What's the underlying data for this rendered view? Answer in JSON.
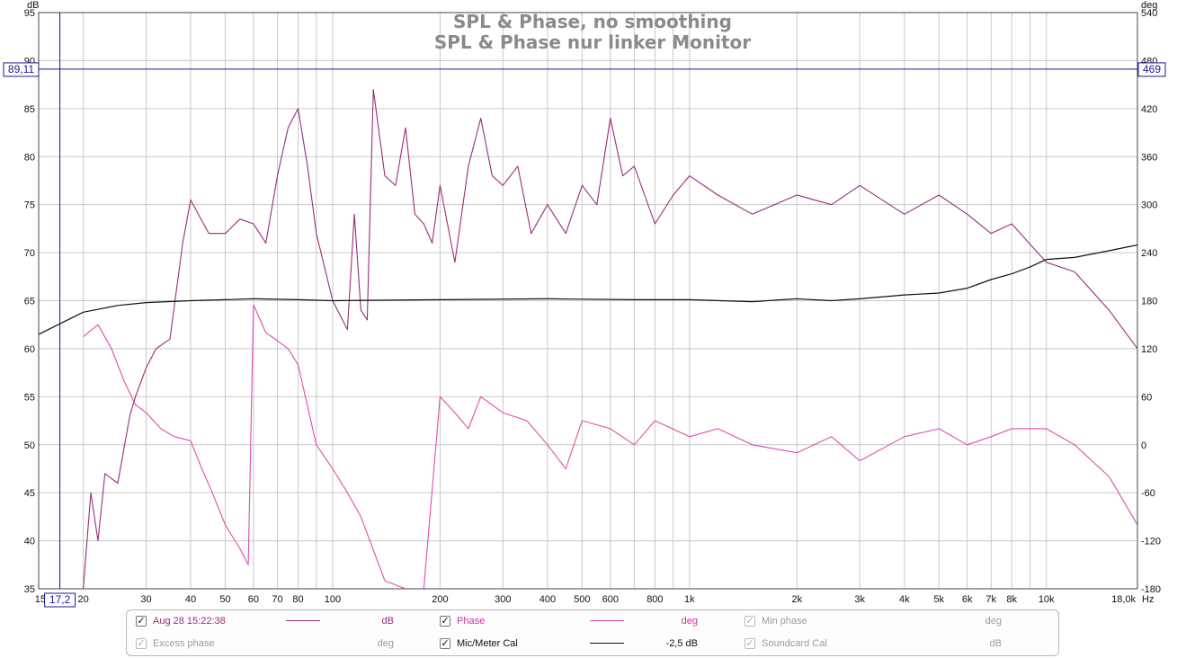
{
  "chart_data": {
    "type": "line",
    "title": "SPL & Phase, no smoothing",
    "subtitle": "SPL & Phase nur linker Monitor",
    "left_axis": {
      "unit": "dB",
      "range": [
        35,
        95
      ],
      "ticks": [
        "95",
        "90",
        "85",
        "80",
        "75",
        "70",
        "65",
        "60",
        "55",
        "50",
        "45",
        "40",
        "35"
      ]
    },
    "right_axis": {
      "unit": "deg",
      "range": [
        -180,
        540
      ],
      "ticks": [
        "540",
        "480",
        "420",
        "360",
        "300",
        "240",
        "180",
        "120",
        "60",
        "0",
        "-60",
        "-120",
        "-180"
      ]
    },
    "x_axis": {
      "unit": "Hz",
      "scale": "log",
      "range": [
        15,
        18000
      ],
      "tick_labels": [
        "15",
        "20",
        "30",
        "40",
        "50",
        "60",
        "70",
        "80",
        "100",
        "200",
        "300",
        "400",
        "500",
        "600",
        "800",
        "1k",
        "2k",
        "3k",
        "4k",
        "5k",
        "6k",
        "7k",
        "8k",
        "10k",
        "18,0k"
      ]
    },
    "grid": true,
    "cursor": {
      "db": "89,11",
      "deg": "469",
      "freq": "17,2"
    },
    "series": [
      {
        "name": "Aug 28 15:22:38",
        "unit": "dB",
        "color": "#9b2b7d",
        "x": [
          20,
          21,
          22,
          23,
          25,
          27,
          28,
          30,
          32,
          35,
          38,
          40,
          42,
          45,
          50,
          55,
          60,
          65,
          70,
          75,
          80,
          85,
          90,
          100,
          110,
          115,
          120,
          125,
          130,
          140,
          150,
          160,
          170,
          180,
          190,
          200,
          220,
          240,
          260,
          280,
          300,
          330,
          360,
          400,
          450,
          500,
          550,
          600,
          650,
          700,
          800,
          900,
          1000,
          1200,
          1500,
          2000,
          2500,
          3000,
          4000,
          5000,
          6000,
          7000,
          8000,
          10000,
          12000,
          15000,
          18000
        ],
        "values": [
          35,
          45,
          40,
          47,
          46,
          53,
          55,
          58,
          60,
          61,
          71,
          75.5,
          74,
          72,
          72,
          73.5,
          73,
          71,
          78,
          83,
          85,
          79,
          72,
          65,
          62,
          74,
          64,
          63,
          87,
          78,
          77,
          83,
          74,
          73,
          71,
          77,
          69,
          79,
          84,
          78,
          77,
          79,
          72,
          75,
          72,
          77,
          75,
          84,
          78,
          79,
          73,
          76,
          78,
          76,
          74,
          76,
          75,
          77,
          74,
          76,
          74,
          72,
          73,
          69,
          68,
          64,
          60
        ]
      },
      {
        "name": "Phase",
        "unit": "deg",
        "color": "#e34aae",
        "x": [
          20,
          22,
          24,
          26,
          28,
          30,
          33,
          36,
          40,
          43,
          46,
          50,
          55,
          58,
          60,
          65,
          70,
          75,
          80,
          90,
          100,
          110,
          120,
          140,
          160,
          180,
          200,
          220,
          240,
          260,
          300,
          350,
          400,
          450,
          500,
          600,
          700,
          800,
          1000,
          1200,
          1500,
          2000,
          2500,
          3000,
          4000,
          5000,
          6000,
          7000,
          8000,
          10000,
          12000,
          15000,
          18000
        ],
        "values": [
          135,
          150,
          120,
          80,
          50,
          40,
          20,
          10,
          5,
          -30,
          -60,
          -100,
          -130,
          -150,
          175,
          140,
          130,
          120,
          100,
          0,
          -30,
          -60,
          -90,
          -170,
          -180,
          -180,
          60,
          40,
          20,
          60,
          40,
          30,
          0,
          -30,
          30,
          20,
          0,
          30,
          10,
          20,
          0,
          -10,
          10,
          -20,
          10,
          20,
          0,
          10,
          20,
          20,
          0,
          -40,
          -100
        ]
      },
      {
        "name": "Mic/Meter Cal",
        "unit": "dB",
        "color": "#111111",
        "x": [
          15,
          17,
          20,
          25,
          30,
          40,
          50,
          60,
          80,
          100,
          200,
          400,
          700,
          1000,
          1500,
          2000,
          2500,
          3000,
          4000,
          5000,
          6000,
          7000,
          8000,
          9000,
          10000,
          12000,
          15000,
          18000
        ],
        "values": [
          61.5,
          62.5,
          63.8,
          64.5,
          64.8,
          65.0,
          65.1,
          65.2,
          65.1,
          65.0,
          65.1,
          65.2,
          65.1,
          65.1,
          64.9,
          65.2,
          65.0,
          65.2,
          65.6,
          65.8,
          66.3,
          67.2,
          67.8,
          68.5,
          69.3,
          69.5,
          70.2,
          70.8
        ]
      }
    ],
    "legend": [
      {
        "name": "Aug 28 15:22:38",
        "unit": "dB",
        "checked": true
      },
      {
        "name": "Phase",
        "unit": "deg",
        "checked": true
      },
      {
        "name": "Min phase",
        "unit": "deg",
        "checked": true
      },
      {
        "name": "Excess phase",
        "unit": "deg",
        "checked": true
      },
      {
        "name": "Mic/Meter Cal",
        "unit": "-2,5 dB",
        "checked": true
      },
      {
        "name": "Soundcard Cal",
        "unit": "dB",
        "checked": true
      }
    ]
  },
  "colors": {
    "spl": "#9b2b7d",
    "phase": "#e34aae",
    "cal": "#111111",
    "grid": "#c9c9c9",
    "cursor": "#1a1a8c",
    "disabled_text": "#9a9a9a"
  }
}
